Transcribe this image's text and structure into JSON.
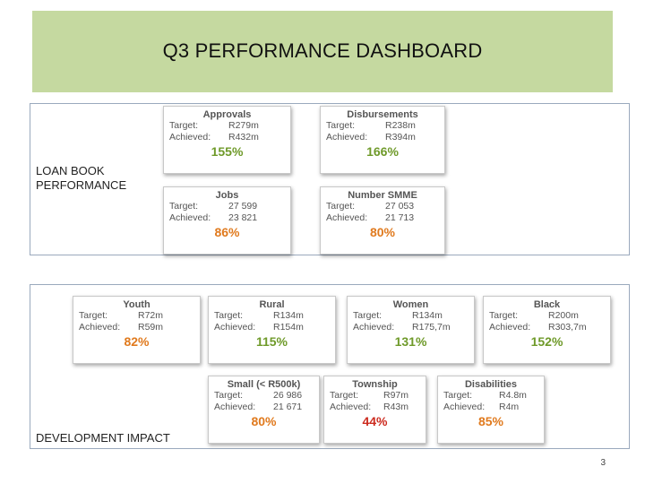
{
  "title": "Q3 PERFORMANCE DASHBOARD",
  "labels": {
    "target": "Target:",
    "achieved": "Achieved:"
  },
  "loan_book": {
    "label_line1": "LOAN BOOK",
    "label_line2": "PERFORMANCE",
    "cards": [
      {
        "title": "Approvals",
        "target": "R279m",
        "achieved": "R432m",
        "pct": "155%",
        "status": "green"
      },
      {
        "title": "Disbursements",
        "target": "R238m",
        "achieved": "R394m",
        "pct": "166%",
        "status": "green"
      },
      {
        "title": "Jobs",
        "target": "27 599",
        "achieved": "23 821",
        "pct": "86%",
        "status": "orange"
      },
      {
        "title": "Number SMME",
        "target": "27 053",
        "achieved": "21 713",
        "pct": "80%",
        "status": "orange"
      }
    ]
  },
  "development_impact": {
    "label": "DEVELOPMENT IMPACT",
    "cards": [
      {
        "title": "Youth",
        "target": "R72m",
        "achieved": "R59m",
        "pct": "82%",
        "status": "orange"
      },
      {
        "title": "Rural",
        "target": "R134m",
        "achieved": "R154m",
        "pct": "115%",
        "status": "green"
      },
      {
        "title": "Women",
        "target": "R134m",
        "achieved": "R175,7m",
        "pct": "131%",
        "status": "green"
      },
      {
        "title": "Black",
        "target": "R200m",
        "achieved": "R303,7m",
        "pct": "152%",
        "status": "green"
      },
      {
        "title": "Small (< R500k)",
        "target": "26 986",
        "achieved": "21 671",
        "pct": "80%",
        "status": "orange"
      },
      {
        "title": "Township",
        "target": "R97m",
        "achieved": "R43m",
        "pct": "44%",
        "status": "red"
      },
      {
        "title": "Disabilities",
        "target": "R4.8m",
        "achieved": "R4m",
        "pct": "85%",
        "status": "orange"
      }
    ]
  },
  "status_colors": {
    "green": "#6f9a2a",
    "orange": "#e07a1e",
    "red": "#cc2b1f"
  },
  "page_number": "3"
}
